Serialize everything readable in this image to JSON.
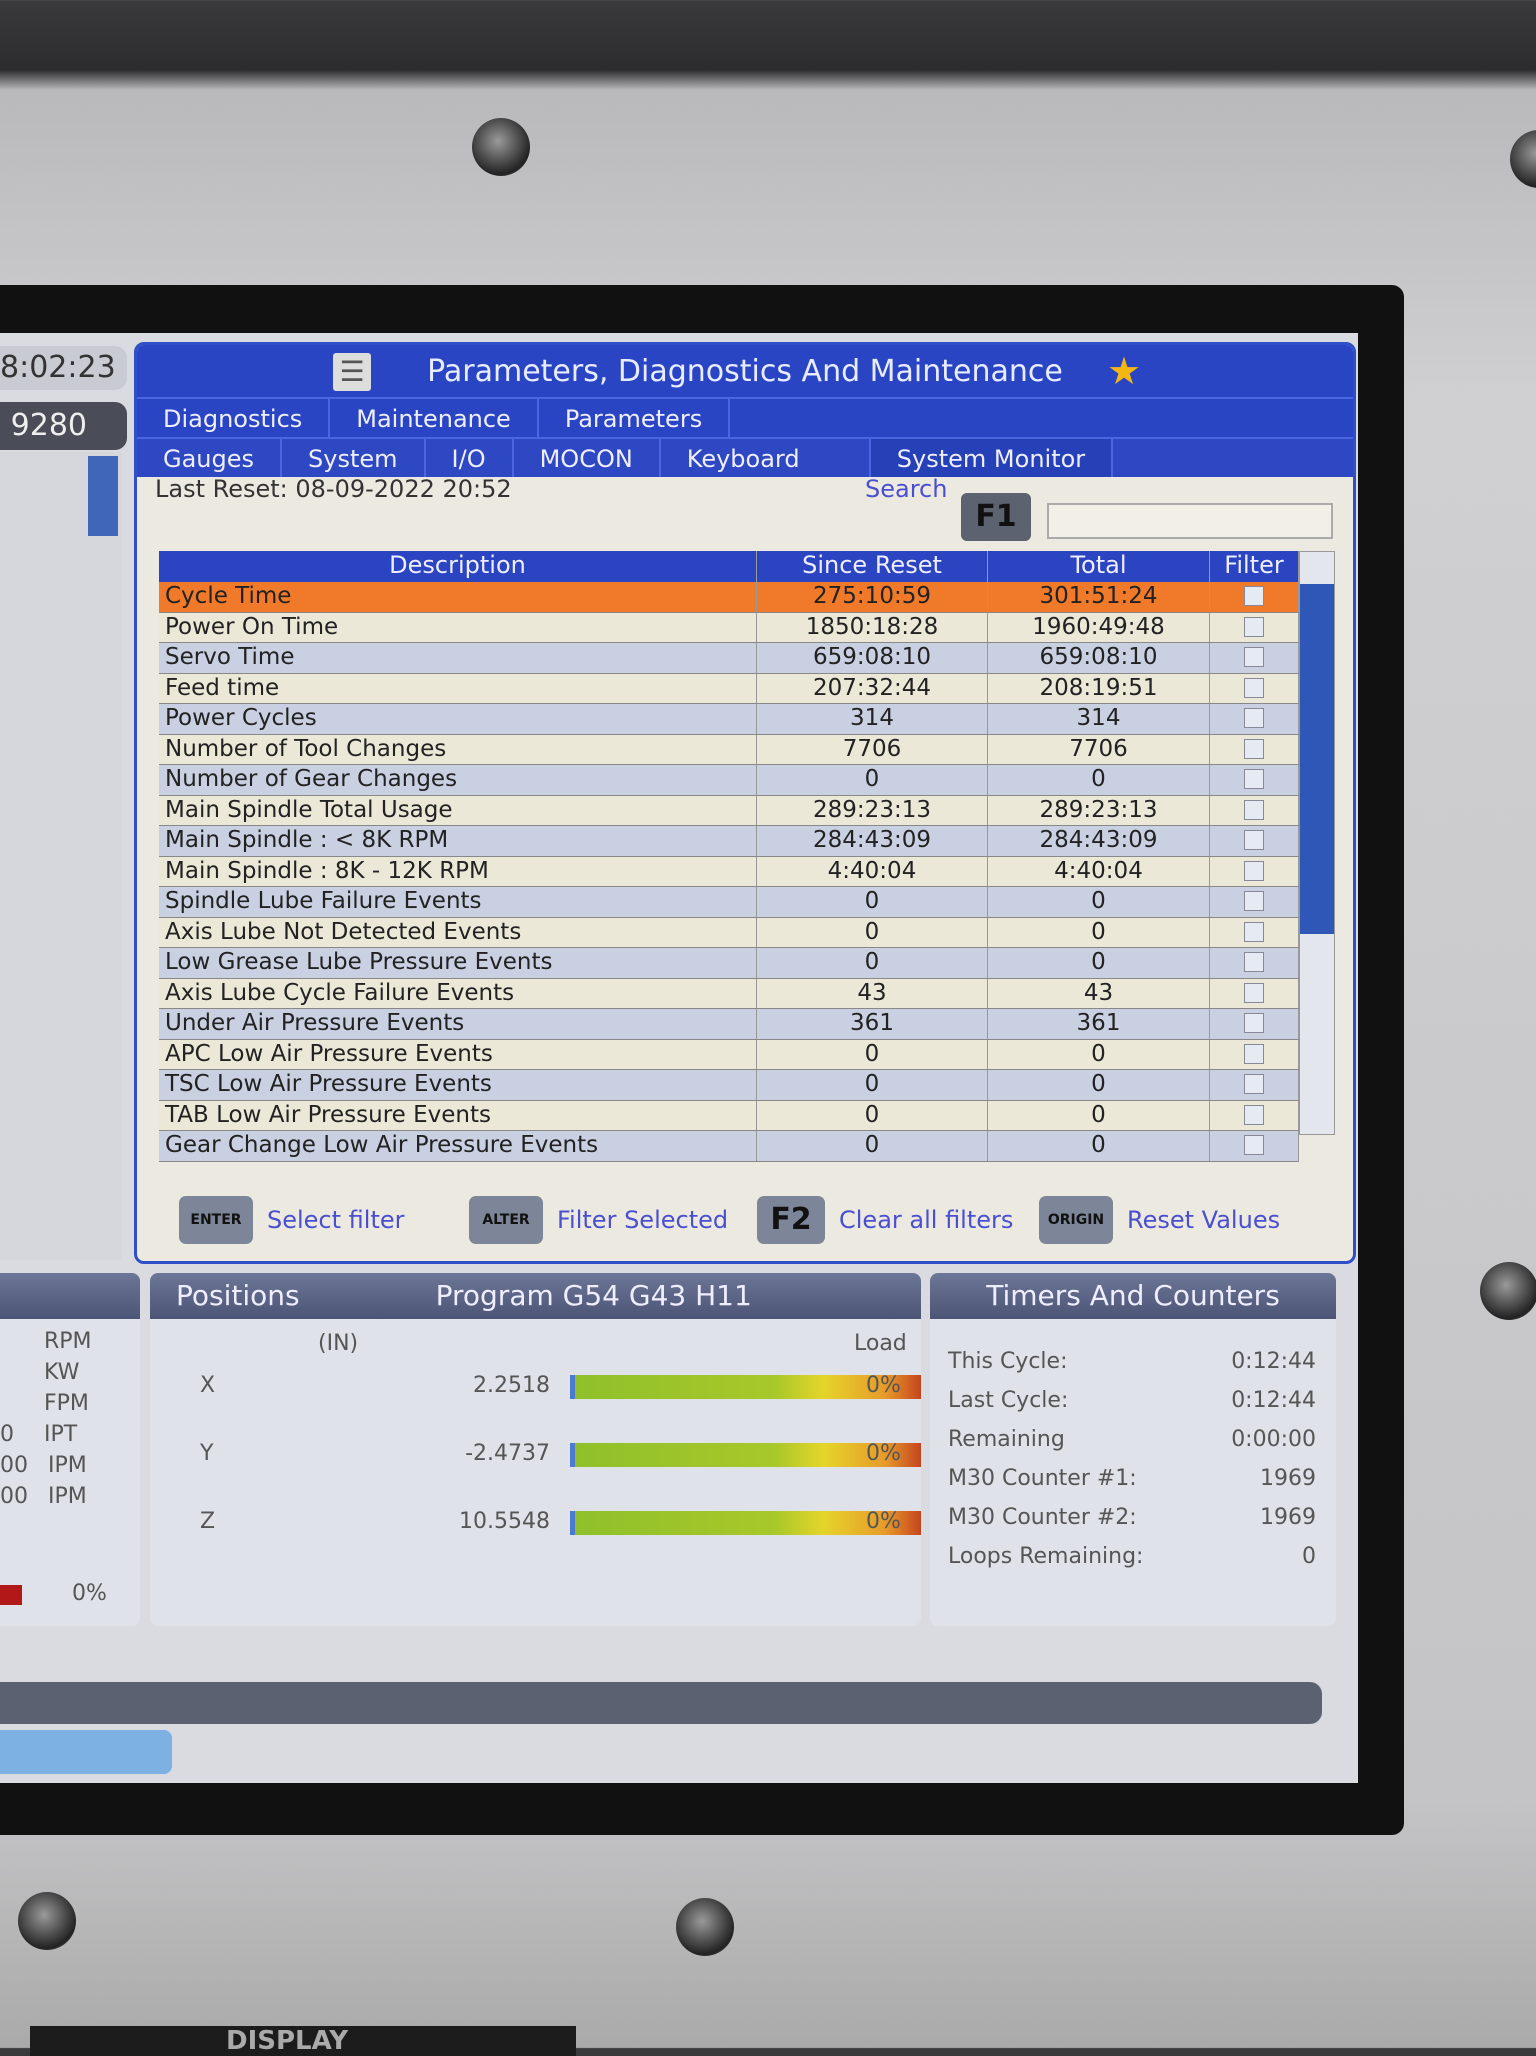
{
  "clock": "8:02:23",
  "left_counter": "9280",
  "title": "Parameters, Diagnostics And Maintenance",
  "tabs_row1": [
    "Diagnostics",
    "Maintenance",
    "Parameters"
  ],
  "tabs_row2": [
    "Gauges",
    "System",
    "I/O",
    "MOCON",
    "Keyboard",
    "System Monitor"
  ],
  "last_reset": "Last Reset: 08-09-2022 20:52",
  "search_label": "Search",
  "search_key": "F1",
  "search_value": "",
  "table": {
    "headers": [
      "Description",
      "Since Reset",
      "Total",
      "Filter"
    ],
    "rows": [
      [
        "Cycle Time",
        "275:10:59",
        "301:51:24"
      ],
      [
        "Power On Time",
        "1850:18:28",
        "1960:49:48"
      ],
      [
        "Servo Time",
        "659:08:10",
        "659:08:10"
      ],
      [
        "Feed time",
        "207:32:44",
        "208:19:51"
      ],
      [
        "Power Cycles",
        "314",
        "314"
      ],
      [
        "Number of Tool Changes",
        "7706",
        "7706"
      ],
      [
        "Number of Gear Changes",
        "0",
        "0"
      ],
      [
        "Main Spindle Total Usage",
        "289:23:13",
        "289:23:13"
      ],
      [
        "Main Spindle : < 8K RPM",
        "284:43:09",
        "284:43:09"
      ],
      [
        "Main Spindle : 8K - 12K RPM",
        "4:40:04",
        "4:40:04"
      ],
      [
        "Spindle Lube Failure Events",
        "0",
        "0"
      ],
      [
        "Axis Lube Not Detected Events",
        "0",
        "0"
      ],
      [
        "Low Grease Lube Pressure Events",
        "0",
        "0"
      ],
      [
        "Axis Lube Cycle Failure Events",
        "43",
        "43"
      ],
      [
        "Under Air Pressure Events",
        "361",
        "361"
      ],
      [
        "APC Low Air Pressure Events",
        "0",
        "0"
      ],
      [
        "TSC Low Air Pressure Events",
        "0",
        "0"
      ],
      [
        "TAB Low Air Pressure Events",
        "0",
        "0"
      ],
      [
        "Gear Change Low Air Pressure Events",
        "0",
        "0"
      ]
    ],
    "selected_row": 0
  },
  "footer": [
    {
      "key": "ENTER",
      "label": "Select filter"
    },
    {
      "key": "ALTER",
      "label": "Filter Selected"
    },
    {
      "key": "F2",
      "label": "Clear all filters"
    },
    {
      "key": "ORIGIN",
      "label": "Reset Values"
    }
  ],
  "left_panel": {
    "units": [
      "RPM",
      "KW",
      "FPM",
      "IPT",
      "IPM",
      "IPM"
    ],
    "partial_values": [
      "0",
      "00",
      "00"
    ],
    "load": "0%"
  },
  "positions": {
    "title": "Positions",
    "program": "Program G54 G43 H11",
    "unit": "(IN)",
    "load_label": "Load",
    "axes": [
      {
        "axis": "X",
        "value": "2.2518",
        "load": "0%"
      },
      {
        "axis": "Y",
        "value": "-2.4737",
        "load": "0%"
      },
      {
        "axis": "Z",
        "value": "10.5548",
        "load": "0%"
      }
    ]
  },
  "timers": {
    "title": "Timers And Counters",
    "items": [
      [
        "This Cycle:",
        "0:12:44"
      ],
      [
        "Last Cycle:",
        "0:12:44"
      ],
      [
        "Remaining",
        "0:00:00"
      ],
      [
        "M30 Counter #1:",
        "1969"
      ],
      [
        "M30 Counter #2:",
        "1969"
      ],
      [
        "Loops Remaining:",
        "0"
      ]
    ]
  },
  "bezel_label": "DISPLAY",
  "colors": {
    "header_blue": "#2a45c4",
    "selected_row": "#f07a2a",
    "link": "#4a4ed0"
  }
}
